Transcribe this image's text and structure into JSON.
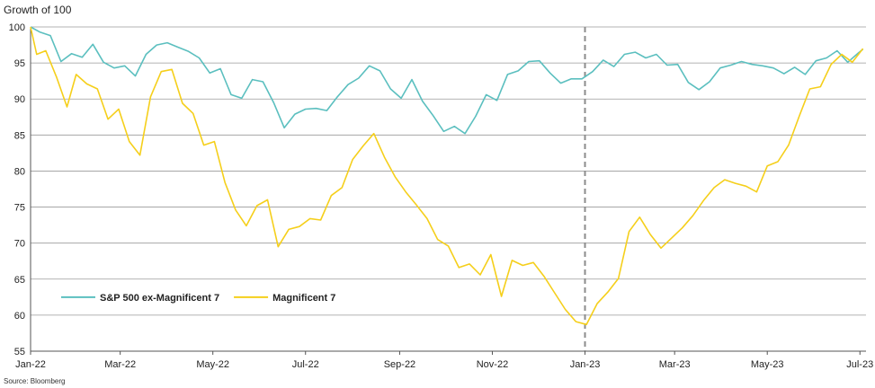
{
  "chart_data": {
    "type": "line",
    "title": "",
    "ylabel": "Growth of 100",
    "xlabel": "",
    "source": "Source: Bloomberg",
    "ylim": [
      55,
      100
    ],
    "yticks": [
      55,
      60,
      65,
      70,
      75,
      80,
      85,
      90,
      95,
      100
    ],
    "xlim": [
      "2022-01-01",
      "2023-07-05"
    ],
    "xticks": [
      {
        "date": "2022-01-01",
        "label": "Jan-22"
      },
      {
        "date": "2022-03-01",
        "label": "Mar-22"
      },
      {
        "date": "2022-05-01",
        "label": "May-22"
      },
      {
        "date": "2022-07-01",
        "label": "Jul-22"
      },
      {
        "date": "2022-09-01",
        "label": "Sep-22"
      },
      {
        "date": "2022-11-01",
        "label": "Nov-22"
      },
      {
        "date": "2023-01-01",
        "label": "Jan-23"
      },
      {
        "date": "2023-03-01",
        "label": "Mar-23"
      },
      {
        "date": "2023-05-01",
        "label": "May-23"
      },
      {
        "date": "2023-07-01",
        "label": "Jul-23"
      }
    ],
    "vline": "2023-01-01",
    "grid": true,
    "legend_position": "bottom-left",
    "series": [
      {
        "name": "S&P 500 ex-Magnificent 7",
        "color": "#5bbfbf",
        "points": [
          [
            "2022-01-01",
            100
          ],
          [
            "2022-01-07",
            99.3
          ],
          [
            "2022-01-14",
            98.8
          ],
          [
            "2022-01-21",
            95.2
          ],
          [
            "2022-01-28",
            96.3
          ],
          [
            "2022-02-04",
            95.8
          ],
          [
            "2022-02-11",
            97.6
          ],
          [
            "2022-02-18",
            95.1
          ],
          [
            "2022-02-25",
            94.3
          ],
          [
            "2022-03-04",
            94.6
          ],
          [
            "2022-03-11",
            93.2
          ],
          [
            "2022-03-18",
            96.2
          ],
          [
            "2022-03-25",
            97.5
          ],
          [
            "2022-04-01",
            97.8
          ],
          [
            "2022-04-08",
            97.2
          ],
          [
            "2022-04-15",
            96.6
          ],
          [
            "2022-04-22",
            95.7
          ],
          [
            "2022-04-29",
            93.6
          ],
          [
            "2022-05-06",
            94.2
          ],
          [
            "2022-05-13",
            90.6
          ],
          [
            "2022-05-20",
            90.1
          ],
          [
            "2022-05-27",
            92.7
          ],
          [
            "2022-06-03",
            92.4
          ],
          [
            "2022-06-10",
            89.5
          ],
          [
            "2022-06-17",
            86.0
          ],
          [
            "2022-06-24",
            87.9
          ],
          [
            "2022-07-01",
            88.6
          ],
          [
            "2022-07-08",
            88.7
          ],
          [
            "2022-07-15",
            88.4
          ],
          [
            "2022-07-22",
            90.3
          ],
          [
            "2022-07-29",
            92.0
          ],
          [
            "2022-08-05",
            92.9
          ],
          [
            "2022-08-12",
            94.6
          ],
          [
            "2022-08-19",
            93.9
          ],
          [
            "2022-08-26",
            91.4
          ],
          [
            "2022-09-02",
            90.1
          ],
          [
            "2022-09-09",
            92.7
          ],
          [
            "2022-09-16",
            89.7
          ],
          [
            "2022-09-23",
            87.7
          ],
          [
            "2022-09-30",
            85.5
          ],
          [
            "2022-10-07",
            86.2
          ],
          [
            "2022-10-14",
            85.2
          ],
          [
            "2022-10-21",
            87.6
          ],
          [
            "2022-10-28",
            90.6
          ],
          [
            "2022-11-04",
            89.8
          ],
          [
            "2022-11-11",
            93.4
          ],
          [
            "2022-11-18",
            93.9
          ],
          [
            "2022-11-25",
            95.2
          ],
          [
            "2022-12-02",
            95.3
          ],
          [
            "2022-12-09",
            93.6
          ],
          [
            "2022-12-16",
            92.2
          ],
          [
            "2022-12-23",
            92.8
          ],
          [
            "2022-12-30",
            92.8
          ],
          [
            "2023-01-06",
            93.8
          ],
          [
            "2023-01-13",
            95.4
          ],
          [
            "2023-01-20",
            94.5
          ],
          [
            "2023-01-27",
            96.2
          ],
          [
            "2023-02-03",
            96.5
          ],
          [
            "2023-02-10",
            95.7
          ],
          [
            "2023-02-17",
            96.2
          ],
          [
            "2023-02-24",
            94.7
          ],
          [
            "2023-03-03",
            94.8
          ],
          [
            "2023-03-10",
            92.3
          ],
          [
            "2023-03-17",
            91.3
          ],
          [
            "2023-03-24",
            92.4
          ],
          [
            "2023-03-31",
            94.3
          ],
          [
            "2023-04-07",
            94.7
          ],
          [
            "2023-04-14",
            95.2
          ],
          [
            "2023-04-21",
            94.8
          ],
          [
            "2023-04-28",
            94.6
          ],
          [
            "2023-05-05",
            94.3
          ],
          [
            "2023-05-12",
            93.5
          ],
          [
            "2023-05-19",
            94.4
          ],
          [
            "2023-05-26",
            93.4
          ],
          [
            "2023-06-02",
            95.3
          ],
          [
            "2023-06-09",
            95.7
          ],
          [
            "2023-06-16",
            96.7
          ],
          [
            "2023-06-23",
            95.1
          ],
          [
            "2023-06-30",
            96.4
          ],
          [
            "2023-07-03",
            96.9
          ]
        ]
      },
      {
        "name": "Magnificent 7",
        "color": "#f5cf1b",
        "points": [
          [
            "2022-01-01",
            100
          ],
          [
            "2022-01-05",
            96.2
          ],
          [
            "2022-01-11",
            96.7
          ],
          [
            "2022-01-18",
            93.1
          ],
          [
            "2022-01-25",
            88.9
          ],
          [
            "2022-01-31",
            93.4
          ],
          [
            "2022-02-07",
            92.1
          ],
          [
            "2022-02-14",
            91.4
          ],
          [
            "2022-02-21",
            87.2
          ],
          [
            "2022-02-28",
            88.6
          ],
          [
            "2022-03-07",
            84.1
          ],
          [
            "2022-03-14",
            82.2
          ],
          [
            "2022-03-21",
            90.3
          ],
          [
            "2022-03-28",
            93.8
          ],
          [
            "2022-04-04",
            94.1
          ],
          [
            "2022-04-11",
            89.4
          ],
          [
            "2022-04-18",
            88.0
          ],
          [
            "2022-04-25",
            83.6
          ],
          [
            "2022-05-02",
            84.1
          ],
          [
            "2022-05-09",
            78.4
          ],
          [
            "2022-05-16",
            74.6
          ],
          [
            "2022-05-23",
            72.4
          ],
          [
            "2022-05-30",
            75.2
          ],
          [
            "2022-06-06",
            76.0
          ],
          [
            "2022-06-13",
            69.5
          ],
          [
            "2022-06-20",
            71.9
          ],
          [
            "2022-06-27",
            72.3
          ],
          [
            "2022-07-04",
            73.4
          ],
          [
            "2022-07-11",
            73.2
          ],
          [
            "2022-07-18",
            76.6
          ],
          [
            "2022-07-25",
            77.7
          ],
          [
            "2022-08-01",
            81.6
          ],
          [
            "2022-08-08",
            83.5
          ],
          [
            "2022-08-15",
            85.2
          ],
          [
            "2022-08-22",
            81.9
          ],
          [
            "2022-08-29",
            79.2
          ],
          [
            "2022-09-05",
            77.1
          ],
          [
            "2022-09-12",
            75.3
          ],
          [
            "2022-09-19",
            73.4
          ],
          [
            "2022-09-26",
            70.5
          ],
          [
            "2022-10-03",
            69.6
          ],
          [
            "2022-10-10",
            66.6
          ],
          [
            "2022-10-17",
            67.1
          ],
          [
            "2022-10-24",
            65.6
          ],
          [
            "2022-10-31",
            68.4
          ],
          [
            "2022-11-07",
            62.6
          ],
          [
            "2022-11-14",
            67.6
          ],
          [
            "2022-11-21",
            66.9
          ],
          [
            "2022-11-28",
            67.3
          ],
          [
            "2022-12-05",
            65.4
          ],
          [
            "2022-12-12",
            63.1
          ],
          [
            "2022-12-19",
            60.8
          ],
          [
            "2022-12-26",
            59.1
          ],
          [
            "2023-01-02",
            58.7
          ],
          [
            "2023-01-09",
            61.6
          ],
          [
            "2023-01-16",
            63.2
          ],
          [
            "2023-01-23",
            65.1
          ],
          [
            "2023-01-30",
            71.6
          ],
          [
            "2023-02-06",
            73.6
          ],
          [
            "2023-02-13",
            71.2
          ],
          [
            "2023-02-20",
            69.3
          ],
          [
            "2023-02-27",
            70.7
          ],
          [
            "2023-03-06",
            72.1
          ],
          [
            "2023-03-13",
            73.8
          ],
          [
            "2023-03-20",
            75.9
          ],
          [
            "2023-03-27",
            77.7
          ],
          [
            "2023-04-03",
            78.8
          ],
          [
            "2023-04-10",
            78.3
          ],
          [
            "2023-04-17",
            77.9
          ],
          [
            "2023-04-24",
            77.1
          ],
          [
            "2023-05-01",
            80.7
          ],
          [
            "2023-05-08",
            81.3
          ],
          [
            "2023-05-15",
            83.6
          ],
          [
            "2023-05-22",
            87.6
          ],
          [
            "2023-05-29",
            91.4
          ],
          [
            "2023-06-05",
            91.7
          ],
          [
            "2023-06-12",
            94.8
          ],
          [
            "2023-06-19",
            96.2
          ],
          [
            "2023-06-26",
            95.1
          ],
          [
            "2023-07-03",
            97.0
          ]
        ]
      }
    ]
  }
}
